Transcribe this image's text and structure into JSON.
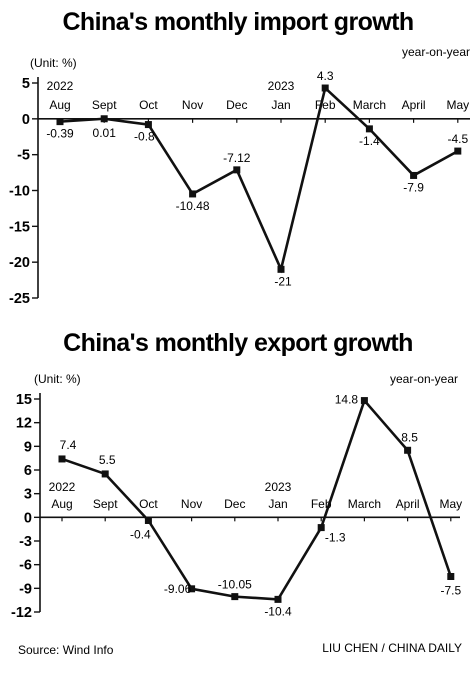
{
  "footer": {
    "source": "Source: Wind Info",
    "credit": "LIU CHEN / CHINA DAILY"
  },
  "colors": {
    "line": "#111111",
    "axis": "#111111",
    "background": "#ffffff"
  },
  "chart_data": [
    {
      "type": "line",
      "title": "China's monthly import growth",
      "unit": "(Unit: %)",
      "measure": "year-on-year",
      "categories": [
        "Aug",
        "Sept",
        "Oct",
        "Nov",
        "Dec",
        "Jan",
        "Feb",
        "March",
        "April",
        "May"
      ],
      "year_labels": [
        {
          "index": 0,
          "year": "2022"
        },
        {
          "index": 5,
          "year": "2023"
        }
      ],
      "values": [
        -0.39,
        0.01,
        -0.8,
        -10.48,
        -7.12,
        -21,
        4.3,
        -1.4,
        -7.9,
        -4.5
      ],
      "data_labels": [
        "-0.39",
        "0.01",
        "-0.8",
        "-10.48",
        "-7.12",
        "-21",
        "4.3",
        "-1.4",
        "-7.9",
        "-4.5"
      ],
      "ylim": [
        -25,
        5
      ],
      "yticks": [
        5,
        0,
        -5,
        -10,
        -15,
        -20,
        -25
      ],
      "grid": false,
      "xlabel": "",
      "ylabel": ""
    },
    {
      "type": "line",
      "title": "China's monthly export growth",
      "unit": "(Unit: %)",
      "measure": "year-on-year",
      "categories": [
        "Aug",
        "Sept",
        "Oct",
        "Nov",
        "Dec",
        "Jan",
        "Feb",
        "March",
        "April",
        "May"
      ],
      "year_labels": [
        {
          "index": 0,
          "year": "2022"
        },
        {
          "index": 5,
          "year": "2023"
        }
      ],
      "values": [
        7.4,
        5.5,
        -0.4,
        -9.06,
        -10.05,
        -10.4,
        -1.3,
        14.8,
        8.5,
        -7.5
      ],
      "data_labels": [
        "7.4",
        "5.5",
        "-0.4",
        "-9.06",
        "-10.05",
        "-10.4",
        "-1.3",
        "14.8",
        "8.5",
        "-7.5"
      ],
      "ylim": [
        -12,
        15
      ],
      "yticks": [
        15,
        12,
        9,
        6,
        3,
        0,
        -3,
        -6,
        -9,
        -12
      ],
      "grid": false,
      "xlabel": "",
      "ylabel": ""
    }
  ]
}
